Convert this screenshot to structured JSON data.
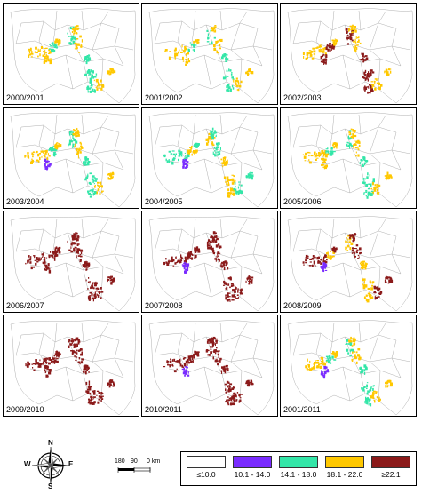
{
  "panels": [
    {
      "label": "2000/2001",
      "regime": "yellow_green"
    },
    {
      "label": "2001/2002",
      "regime": "yellow_green_light"
    },
    {
      "label": "2002/2003",
      "regime": "mixed_maroon"
    },
    {
      "label": "2003/2004",
      "regime": "yellow_green_purple"
    },
    {
      "label": "2004/2005",
      "regime": "green_yellow_purple"
    },
    {
      "label": "2005/2006",
      "regime": "yellow_green"
    },
    {
      "label": "2006/2007",
      "regime": "maroon"
    },
    {
      "label": "2007/2008",
      "regime": "maroon_purple"
    },
    {
      "label": "2008/2009",
      "regime": "maroon_purple_yellow"
    },
    {
      "label": "2009/2010",
      "regime": "maroon"
    },
    {
      "label": "2010/2011",
      "regime": "maroon_purple"
    },
    {
      "label": "2001/2011",
      "regime": "yellow_green_purple_2"
    }
  ],
  "legend": [
    {
      "label": "≤10.0",
      "color": "#ffffff"
    },
    {
      "label": "10.1 - 14.0",
      "color": "#7a2cff"
    },
    {
      "label": "14.1 - 18.0",
      "color": "#33e6a8"
    },
    {
      "label": "18.1 - 22.0",
      "color": "#ffc800"
    },
    {
      "label": "≥22.1",
      "color": "#8b1a1a"
    }
  ],
  "compass": {
    "n": "N",
    "s": "S",
    "e": "E",
    "w": "W"
  },
  "scale": {
    "labels": [
      "180",
      "90",
      "0 km"
    ]
  }
}
